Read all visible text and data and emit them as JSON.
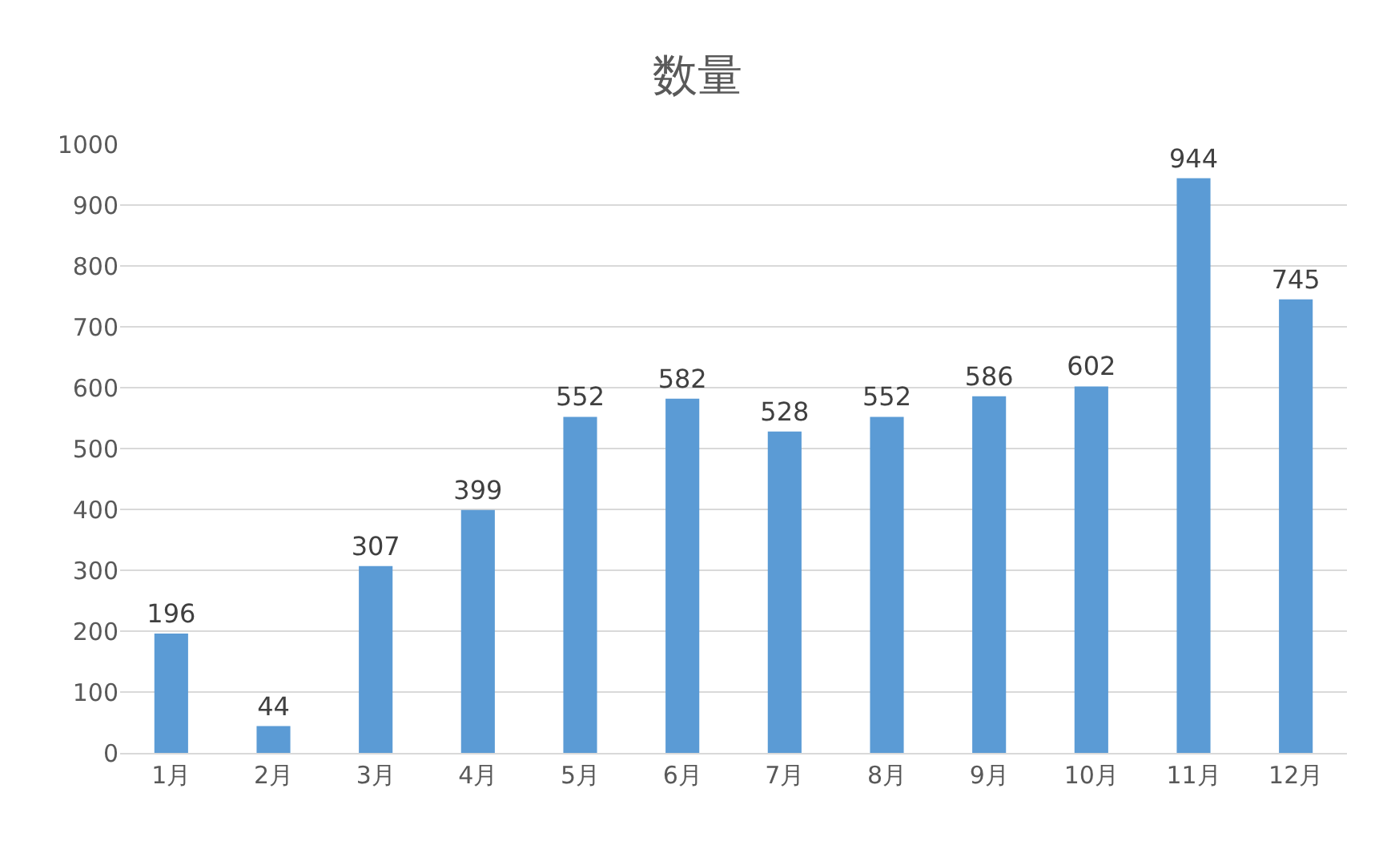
{
  "chart_data": {
    "type": "bar",
    "title": "数量",
    "categories": [
      "1月",
      "2月",
      "3月",
      "4月",
      "5月",
      "6月",
      "7月",
      "8月",
      "9月",
      "10月",
      "11月",
      "12月"
    ],
    "values": [
      196,
      44,
      307,
      399,
      552,
      582,
      528,
      552,
      586,
      602,
      944,
      745
    ],
    "color": "#5b9bd5",
    "ylim": [
      0,
      1000
    ],
    "yticks": [
      0,
      100,
      200,
      300,
      400,
      500,
      600,
      700,
      800,
      900,
      1000
    ],
    "grid": "y",
    "data_labels": true
  }
}
